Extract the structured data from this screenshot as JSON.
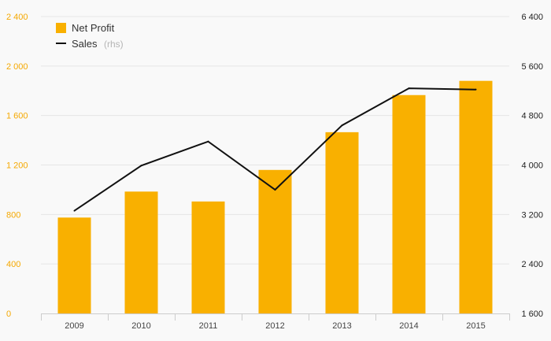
{
  "chart_data": {
    "type": "bar",
    "categories": [
      "2009",
      "2010",
      "2011",
      "2012",
      "2013",
      "2014",
      "2015"
    ],
    "series": [
      {
        "name": "Net Profit",
        "type": "bar",
        "axis": "left",
        "values": [
          775,
          985,
          905,
          1160,
          1465,
          1765,
          1880
        ],
        "color": "#f9b000"
      },
      {
        "name": "Sales",
        "name_note": "(rhs)",
        "type": "line",
        "axis": "right",
        "values": [
          3260,
          3990,
          4380,
          3600,
          4640,
          5240,
          5220
        ],
        "color": "#111111"
      }
    ],
    "y_left": {
      "ylim": [
        0,
        2400
      ],
      "ticks": [
        0,
        400,
        800,
        1200,
        1600,
        2000,
        2400
      ],
      "tick_labels": [
        "0",
        "400",
        "800",
        "1 200",
        "1 600",
        "2 000",
        "2 400"
      ],
      "color": "#f5a800"
    },
    "y_right": {
      "ylim": [
        1600,
        6400
      ],
      "ticks": [
        1600,
        2400,
        3200,
        4000,
        4800,
        5600,
        6400
      ],
      "tick_labels": [
        "1 600",
        "2 400",
        "3 200",
        "4 000",
        "4 800",
        "5 600",
        "6 400"
      ],
      "color": "#222222"
    },
    "grid": true,
    "legend": "top-left",
    "title": "",
    "xlabel": "",
    "ylabel": ""
  }
}
